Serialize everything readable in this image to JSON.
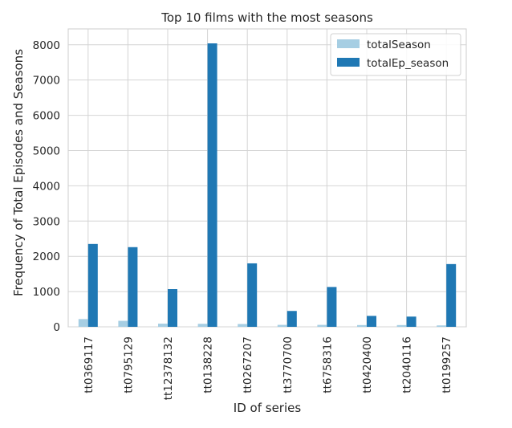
{
  "chart_data": {
    "type": "bar",
    "title": "Top 10 films with the most seasons",
    "xlabel": "ID of series",
    "ylabel": "Frequency of Total Episodes and Seasons",
    "categories": [
      "tt0369117",
      "tt0795129",
      "tt12378132",
      "tt0138228",
      "tt0267207",
      "tt3770700",
      "tt6758316",
      "tt0420400",
      "tt2040116",
      "tt0199257"
    ],
    "series": [
      {
        "name": "totalSeason",
        "color": "#a6cee3",
        "values": [
          220,
          170,
          90,
          85,
          80,
          55,
          55,
          50,
          50,
          40
        ]
      },
      {
        "name": "totalEp_season",
        "color": "#1f78b4",
        "values": [
          2350,
          2260,
          1070,
          8040,
          1800,
          450,
          1130,
          310,
          290,
          1780
        ]
      }
    ],
    "ylim": [
      0,
      8450
    ],
    "yticks": [
      0,
      1000,
      2000,
      3000,
      4000,
      5000,
      6000,
      7000,
      8000
    ],
    "grid": true,
    "legend_position": "top-right"
  }
}
